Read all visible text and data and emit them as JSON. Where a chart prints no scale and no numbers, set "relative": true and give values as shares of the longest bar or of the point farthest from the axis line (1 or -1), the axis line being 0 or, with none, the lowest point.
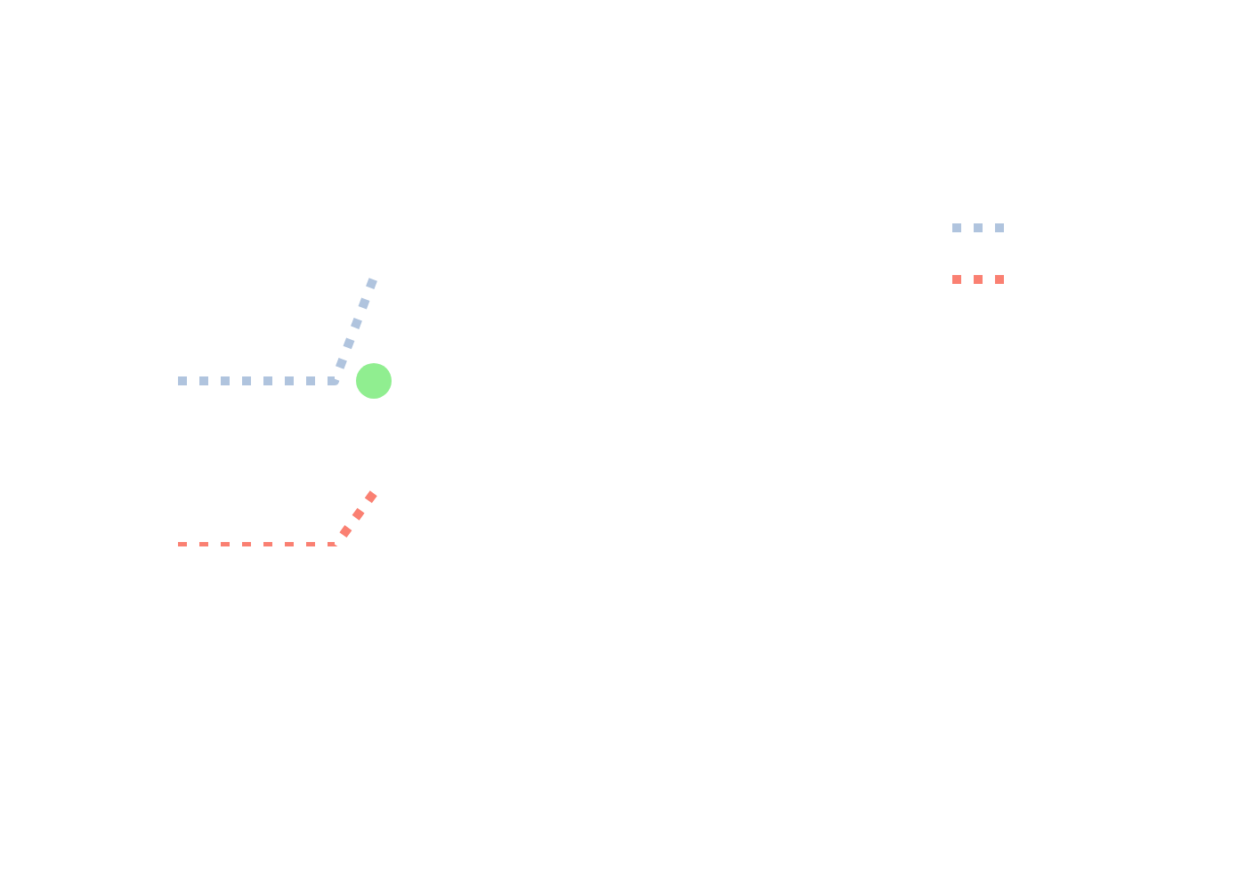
{
  "chart_data": {
    "type": "line",
    "relative": true,
    "categories": [
      null,
      null,
      null,
      null,
      null,
      null
    ],
    "series": [
      {
        "color": "#b0c4de",
        "values": [
          0.616,
          0.616,
          0.616,
          0.616,
          0.616,
          1
        ],
        "line_style": "dotted",
        "marker": "none"
      },
      {
        "color": "#fa8072",
        "values": [
          0,
          0,
          0,
          0,
          0,
          0.199
        ],
        "line_style": "dotted",
        "marker": "none"
      },
      {
        "color": "#90ee90",
        "values": [
          null,
          null,
          null,
          null,
          null,
          0.616
        ],
        "marker": "circle"
      }
    ],
    "legend": false
  }
}
